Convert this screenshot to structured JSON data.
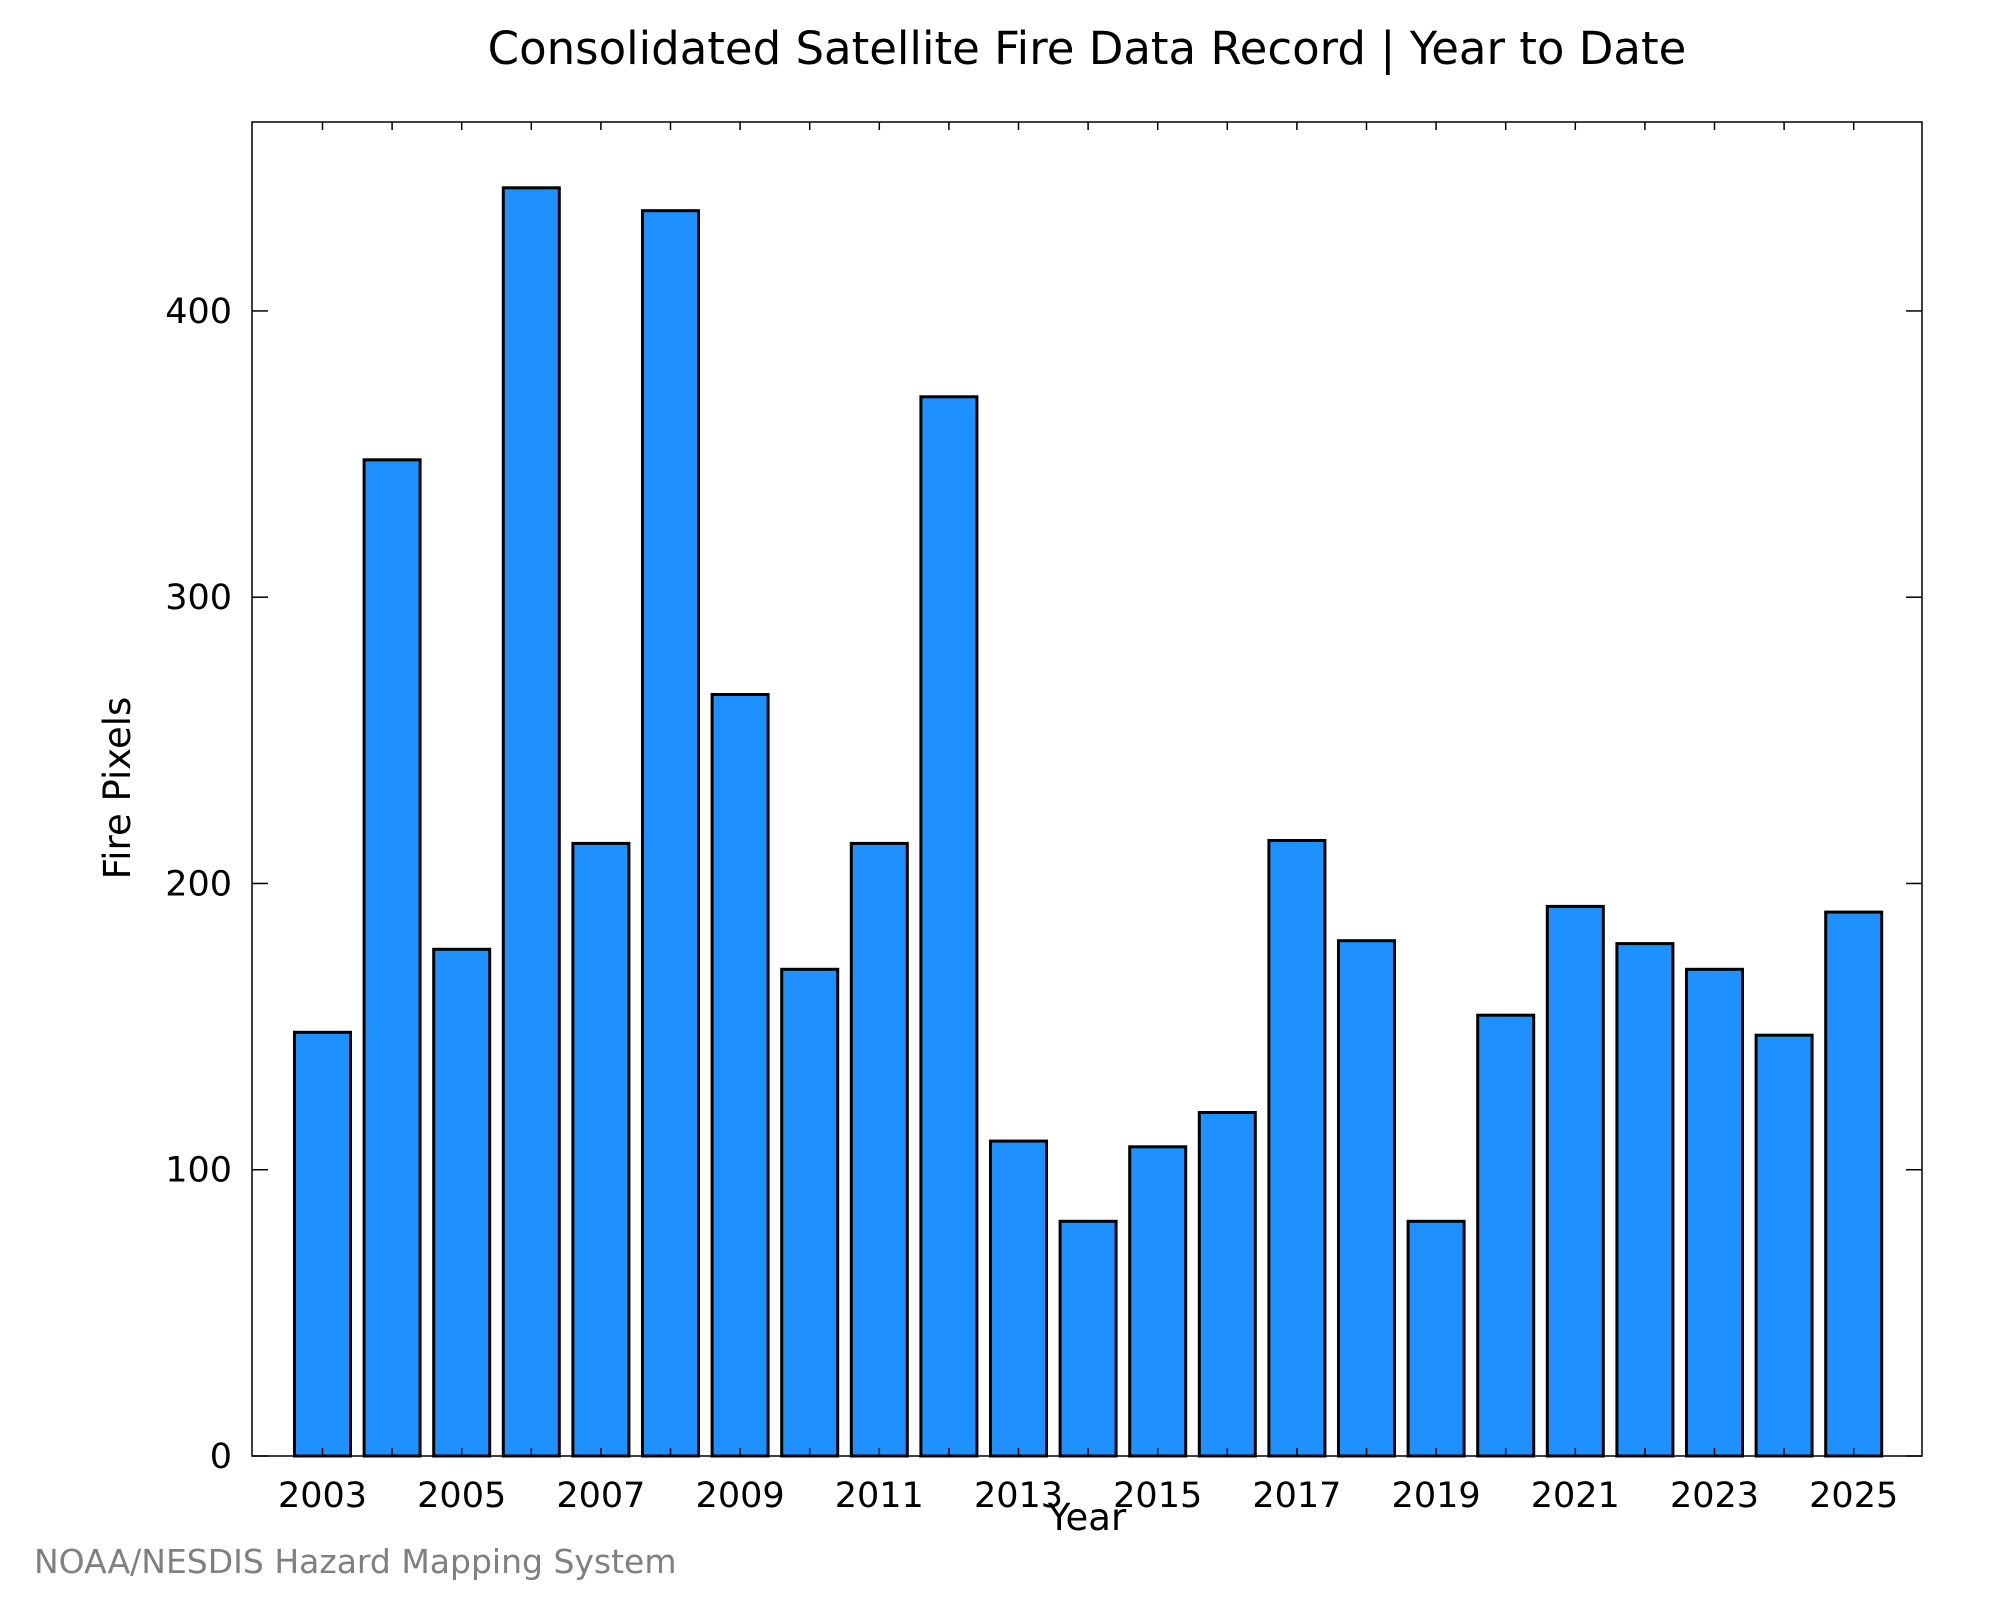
{
  "chart_data": {
    "type": "bar",
    "title": "Consolidated Satellite Fire Data Record | Year to Date",
    "xlabel": "Year",
    "ylabel": "Fire Pixels",
    "categories": [
      "2003",
      "2004",
      "2005",
      "2006",
      "2007",
      "2008",
      "2009",
      "2010",
      "2011",
      "2012",
      "2013",
      "2014",
      "2015",
      "2016",
      "2017",
      "2018",
      "2019",
      "2020",
      "2021",
      "2022",
      "2023",
      "2024",
      "2025"
    ],
    "values": [
      148,
      348,
      177,
      443,
      214,
      435,
      266,
      170,
      214,
      370,
      110,
      82,
      108,
      120,
      215,
      180,
      82,
      154,
      192,
      179,
      170,
      147,
      190
    ],
    "x_tick_labels": [
      "2003",
      "2005",
      "2007",
      "2009",
      "2011",
      "2013",
      "2015",
      "2017",
      "2019",
      "2021",
      "2023",
      "2025"
    ],
    "y_ticks": [
      0,
      100,
      200,
      300,
      400
    ],
    "ylim": [
      0,
      466
    ],
    "grid": false,
    "legend": "none",
    "bar_color": "#1E90FF",
    "edge_color": "#000000"
  },
  "footer": {
    "credit": "NOAA/NESDIS Hazard Mapping System"
  }
}
